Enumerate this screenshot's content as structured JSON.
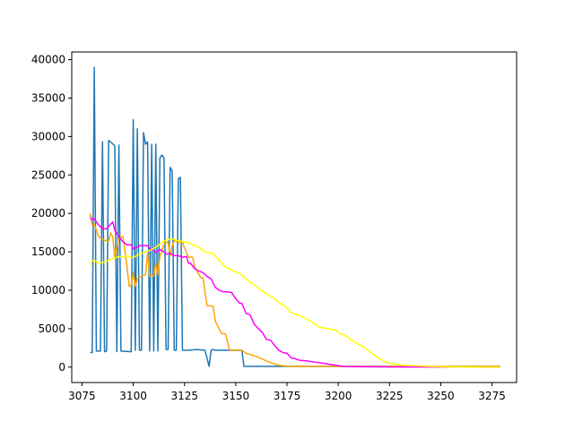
{
  "chart_data": {
    "type": "line",
    "title": "",
    "xlabel": "",
    "ylabel": "",
    "xlim": [
      3070,
      3287
    ],
    "ylim": [
      -2000,
      41000
    ],
    "xticks": [
      3075,
      3100,
      3125,
      3150,
      3175,
      3200,
      3225,
      3250,
      3275
    ],
    "yticks": [
      0,
      5000,
      10000,
      15000,
      20000,
      25000,
      30000,
      35000,
      40000
    ],
    "grid": false,
    "legend": "none",
    "series": [
      {
        "color": "#1f77b4",
        "x": [
          3079,
          3080,
          3081,
          3082,
          3084,
          3085,
          3086,
          3087,
          3088,
          3091,
          3092,
          3093,
          3094,
          3099,
          3100,
          3101,
          3102,
          3103,
          3104,
          3105,
          3106,
          3107,
          3108,
          3109,
          3110,
          3111,
          3112,
          3113,
          3114,
          3115,
          3116,
          3117,
          3118,
          3119,
          3120,
          3121,
          3122,
          3123,
          3124,
          3125,
          3126,
          3127,
          3131,
          3135,
          3137,
          3138,
          3139,
          3140,
          3142,
          3153,
          3154,
          3279
        ],
        "y": [
          1900,
          1900,
          39000,
          2100,
          2100,
          29300,
          2000,
          2100,
          29500,
          28800,
          2000,
          28900,
          2100,
          2000,
          32200,
          2200,
          31000,
          2200,
          2200,
          30500,
          29000,
          29300,
          2100,
          29000,
          2100,
          29000,
          2100,
          27200,
          27600,
          27200,
          2300,
          2300,
          26000,
          25500,
          2200,
          2200,
          24500,
          24700,
          2200,
          2200,
          2200,
          2200,
          2300,
          2200,
          100,
          2200,
          2300,
          2200,
          2200,
          2200,
          100,
          100
        ]
      },
      {
        "color": "#ffa500",
        "x": [
          3079,
          3080,
          3081,
          3083,
          3084,
          3086,
          3088,
          3089,
          3090,
          3091,
          3093,
          3095,
          3097,
          3098,
          3099,
          3100,
          3101,
          3102,
          3104,
          3106,
          3107,
          3108,
          3109,
          3110,
          3111,
          3112,
          3113,
          3115,
          3117,
          3118,
          3119,
          3120,
          3122,
          3124,
          3125,
          3127,
          3129,
          3130,
          3133,
          3134,
          3136,
          3139,
          3140,
          3143,
          3145,
          3147,
          3148,
          3153,
          3155,
          3160,
          3165,
          3170,
          3175,
          3279
        ],
        "y": [
          20000,
          18500,
          18600,
          17000,
          16800,
          16500,
          16400,
          17500,
          16900,
          14200,
          16800,
          17000,
          13000,
          10500,
          10600,
          12300,
          10500,
          11500,
          11800,
          12000,
          14800,
          11800,
          12000,
          11800,
          13500,
          12000,
          14400,
          16000,
          16300,
          14500,
          15700,
          16500,
          16200,
          16300,
          15500,
          14300,
          14300,
          13000,
          11600,
          11600,
          8000,
          7900,
          6000,
          4400,
          4300,
          2200,
          2200,
          2200,
          1800,
          1400,
          800,
          300,
          100,
          100
        ]
      },
      {
        "color": "#ff00ff",
        "x": [
          3079,
          3080,
          3081,
          3083,
          3085,
          3087,
          3089,
          3090,
          3091,
          3093,
          3095,
          3097,
          3099,
          3100,
          3101,
          3103,
          3105,
          3107,
          3108,
          3109,
          3110,
          3111,
          3113,
          3115,
          3116,
          3118,
          3120,
          3122,
          3124,
          3126,
          3127,
          3128,
          3130,
          3132,
          3134,
          3136,
          3138,
          3140,
          3142,
          3144,
          3146,
          3148,
          3150,
          3152,
          3153,
          3155,
          3157,
          3159,
          3161,
          3163,
          3165,
          3167,
          3169,
          3171,
          3173,
          3175,
          3177,
          3179,
          3181,
          3183,
          3185,
          3190,
          3195,
          3200,
          3203,
          3210,
          3220,
          3230,
          3240,
          3250,
          3279
        ],
        "y": [
          19500,
          19200,
          19300,
          18500,
          18000,
          18000,
          18600,
          18900,
          17800,
          17000,
          16300,
          15900,
          15900,
          15400,
          15500,
          15800,
          15800,
          15800,
          15400,
          15300,
          15200,
          14900,
          15300,
          15000,
          14700,
          14800,
          14500,
          14500,
          14300,
          14400,
          13500,
          13500,
          12800,
          12500,
          12300,
          11800,
          11500,
          10400,
          10000,
          9800,
          9800,
          9700,
          8900,
          8300,
          8300,
          7000,
          6800,
          5600,
          5000,
          4500,
          3600,
          3500,
          2800,
          2200,
          1900,
          1800,
          1200,
          1100,
          900,
          850,
          800,
          600,
          400,
          200,
          80,
          50,
          40,
          30,
          20,
          10,
          0
        ]
      },
      {
        "color": "#ffff00",
        "x": [
          3079,
          3080,
          3081,
          3083,
          3085,
          3087,
          3089,
          3091,
          3093,
          3095,
          3097,
          3099,
          3101,
          3103,
          3105,
          3107,
          3109,
          3111,
          3113,
          3115,
          3117,
          3119,
          3121,
          3123,
          3125,
          3127,
          3129,
          3131,
          3133,
          3135,
          3137,
          3139,
          3141,
          3143,
          3145,
          3147,
          3149,
          3151,
          3153,
          3155,
          3157,
          3159,
          3161,
          3163,
          3165,
          3167,
          3169,
          3171,
          3173,
          3175,
          3177,
          3179,
          3181,
          3183,
          3185,
          3187,
          3189,
          3191,
          3193,
          3195,
          3197,
          3199,
          3201,
          3203,
          3205,
          3207,
          3209,
          3211,
          3213,
          3215,
          3217,
          3219,
          3221,
          3223,
          3225,
          3227,
          3230,
          3235,
          3240,
          3245,
          3250,
          3255,
          3260,
          3279
        ],
        "y": [
          13300,
          13800,
          13900,
          13500,
          13600,
          13800,
          14000,
          14200,
          14400,
          14300,
          14500,
          14200,
          14400,
          14700,
          14900,
          15100,
          15300,
          15600,
          16000,
          16400,
          16600,
          16700,
          16500,
          16400,
          16300,
          16200,
          15900,
          15700,
          15400,
          15000,
          14900,
          14700,
          14200,
          13600,
          13000,
          12800,
          12500,
          12300,
          12000,
          11500,
          11000,
          10700,
          10300,
          9900,
          9600,
          9200,
          8900,
          8400,
          8100,
          7700,
          7100,
          6900,
          6700,
          6500,
          6200,
          5900,
          5500,
          5200,
          5100,
          5000,
          4900,
          4800,
          4300,
          4200,
          3800,
          3400,
          3100,
          2800,
          2500,
          2100,
          1700,
          1300,
          1000,
          700,
          500,
          400,
          300,
          200,
          150,
          100,
          50,
          20,
          10,
          0
        ]
      }
    ]
  }
}
